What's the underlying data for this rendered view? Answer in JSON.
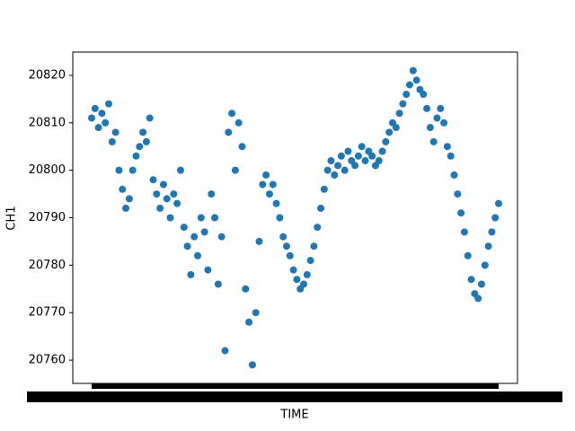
{
  "chart_data": {
    "type": "scatter",
    "xlabel": "TIME",
    "ylabel": "CH1",
    "color": "#1f77b4",
    "values": [
      20811,
      20813,
      20809,
      20812,
      20810,
      20814,
      20806,
      20808,
      20800,
      20796,
      20792,
      20794,
      20800,
      20803,
      20805,
      20808,
      20806,
      20811,
      20798,
      20795,
      20792,
      20797,
      20794,
      20790,
      20795,
      20793,
      20800,
      20788,
      20784,
      20778,
      20786,
      20782,
      20790,
      20787,
      20779,
      20795,
      20790,
      20776,
      20786,
      20762,
      20808,
      20812,
      20800,
      20810,
      20805,
      20775,
      20768,
      20759,
      20770,
      20785,
      20797,
      20799,
      20795,
      20797,
      20793,
      20790,
      20786,
      20784,
      20782,
      20779,
      20777,
      20775,
      20776,
      20778,
      20781,
      20784,
      20788,
      20792,
      20796,
      20800,
      20802,
      20799,
      20801,
      20803,
      20800,
      20804,
      20802,
      20801,
      20803,
      20805,
      20802,
      20804,
      20803,
      20801,
      20802,
      20804,
      20806,
      20808,
      20810,
      20809,
      20812,
      20814,
      20816,
      20818,
      20821,
      20819,
      20817,
      20816,
      20813,
      20809,
      20806,
      20811,
      20813,
      20810,
      20805,
      20803,
      20799,
      20795,
      20791,
      20787,
      20782,
      20777,
      20774,
      20773,
      20776,
      20780,
      20784,
      20787,
      20790,
      20793
    ],
    "ylim": [
      20755.1,
      20824.9
    ],
    "yticks": [
      20760,
      20770,
      20780,
      20790,
      20800,
      20810,
      20820
    ]
  }
}
